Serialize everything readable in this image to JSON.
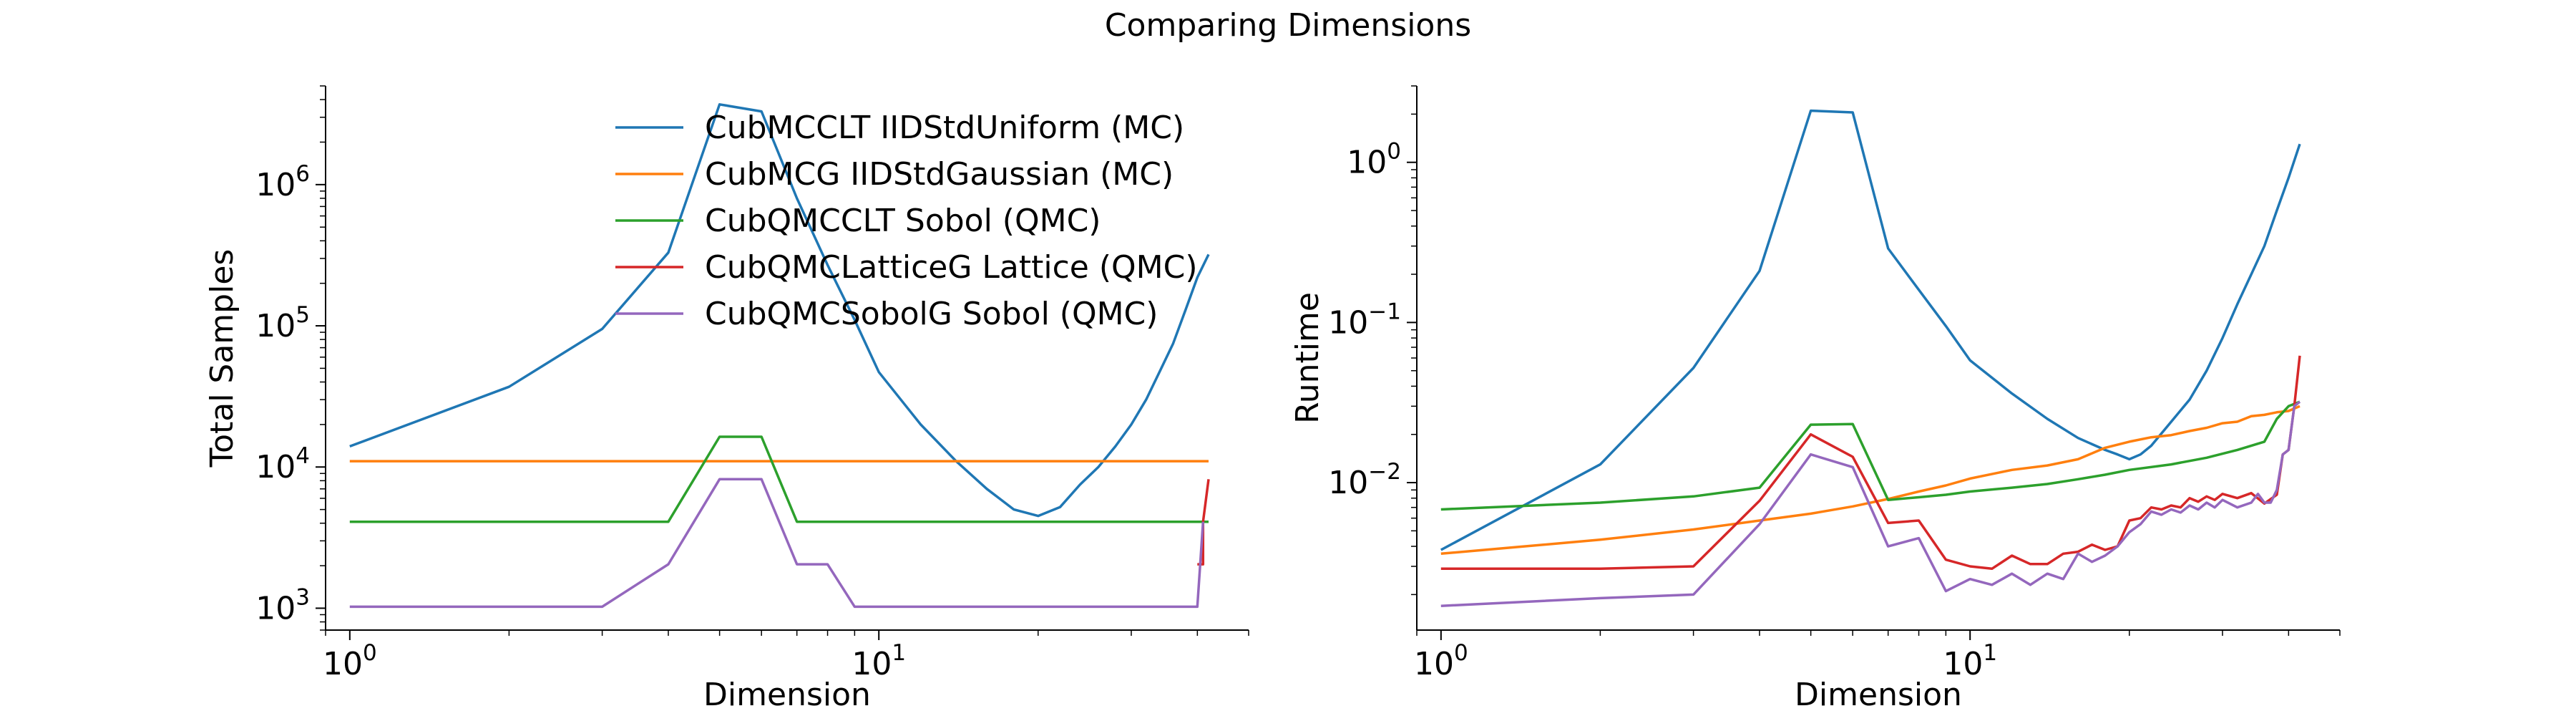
{
  "figure": {
    "title": "Comparing Dimensions"
  },
  "chart_data": [
    {
      "type": "line",
      "xscale": "log",
      "yscale": "log",
      "xlabel": "Dimension",
      "ylabel": "Total Samples",
      "xlim": [
        0.9,
        50
      ],
      "ylim": [
        700,
        5000000
      ],
      "xticks": [
        {
          "value": 1,
          "base": "10",
          "exp": "0"
        },
        {
          "value": 10,
          "base": "10",
          "exp": "1"
        }
      ],
      "yticks": [
        {
          "value": 1000,
          "base": "10",
          "exp": "3"
        },
        {
          "value": 10000,
          "base": "10",
          "exp": "4"
        },
        {
          "value": 100000,
          "base": "10",
          "exp": "5"
        },
        {
          "value": 1000000,
          "base": "10",
          "exp": "6"
        }
      ],
      "grid": false,
      "legend": {
        "placement": "top-right"
      },
      "series": [
        {
          "name": "CubMCCLT IIDStdUniform (MC)",
          "color": "#1f77b4",
          "x": [
            1,
            2,
            3,
            4,
            5,
            6,
            7,
            8,
            9,
            10,
            12,
            14,
            16,
            18,
            20,
            22,
            24,
            26,
            28,
            30,
            32,
            34,
            36,
            38,
            40,
            42
          ],
          "y": [
            14000,
            37000,
            95000,
            330000,
            3700000,
            3300000,
            800000,
            270000,
            110000,
            47000,
            20000,
            11000,
            7000,
            5000,
            4500,
            5200,
            7500,
            10000,
            14000,
            20000,
            30000,
            48000,
            75000,
            130000,
            220000,
            320000
          ]
        },
        {
          "name": "CubMCG IIDStdGaussian (MC)",
          "color": "#ff7f0e",
          "x": [
            1,
            42
          ],
          "y": [
            11000,
            11000
          ]
        },
        {
          "name": "CubQMCCLT Sobol (QMC)",
          "color": "#2ca02c",
          "x": [
            1,
            2,
            3,
            4,
            5,
            6,
            7,
            8,
            10,
            20,
            42
          ],
          "y": [
            4096,
            4096,
            4096,
            4096,
            16384,
            16384,
            4096,
            4096,
            4096,
            4096,
            4096
          ]
        },
        {
          "name": "CubQMCLatticeG Lattice (QMC)",
          "color": "#d62728",
          "x": [
            40,
            41,
            41,
            42
          ],
          "y": [
            2048,
            2048,
            4096,
            8192
          ]
        },
        {
          "name": "CubQMCSobolG Sobol (QMC)",
          "color": "#9467bd",
          "x": [
            1,
            2,
            3,
            4,
            5,
            6,
            7,
            8,
            9,
            10,
            20,
            40,
            41
          ],
          "y": [
            1024,
            1024,
            1024,
            2048,
            8192,
            8192,
            2048,
            2048,
            1024,
            1024,
            1024,
            1024,
            4096
          ]
        }
      ]
    },
    {
      "type": "line",
      "xscale": "log",
      "yscale": "log",
      "xlabel": "Dimension",
      "ylabel": "Runtime",
      "xlim": [
        0.9,
        50
      ],
      "ylim": [
        0.0012,
        3
      ],
      "xticks": [
        {
          "value": 1,
          "base": "10",
          "exp": "0"
        },
        {
          "value": 10,
          "base": "10",
          "exp": "1"
        }
      ],
      "yticks": [
        {
          "value": 0.01,
          "base": "10",
          "exp": "−2"
        },
        {
          "value": 0.1,
          "base": "10",
          "exp": "−1"
        },
        {
          "value": 1,
          "base": "10",
          "exp": "0"
        }
      ],
      "grid": false,
      "legend": null,
      "series": [
        {
          "name": "CubMCCLT IIDStdUniform (MC)",
          "color": "#1f77b4",
          "x": [
            1,
            2,
            3,
            4,
            5,
            6,
            7,
            8,
            9,
            10,
            12,
            14,
            16,
            18,
            19,
            20,
            21,
            22,
            24,
            26,
            28,
            30,
            32,
            34,
            36,
            38,
            40,
            42
          ],
          "y": [
            0.0038,
            0.013,
            0.052,
            0.21,
            2.1,
            2.05,
            0.29,
            0.16,
            0.095,
            0.058,
            0.036,
            0.025,
            0.019,
            0.016,
            0.015,
            0.014,
            0.015,
            0.017,
            0.024,
            0.033,
            0.05,
            0.08,
            0.13,
            0.2,
            0.3,
            0.5,
            0.8,
            1.3
          ]
        },
        {
          "name": "CubMCG IIDStdGaussian (MC)",
          "color": "#ff7f0e",
          "x": [
            1,
            2,
            3,
            4,
            5,
            6,
            7,
            8,
            9,
            10,
            12,
            14,
            16,
            18,
            20,
            22,
            24,
            26,
            28,
            30,
            32,
            34,
            36,
            38,
            40,
            42
          ],
          "y": [
            0.0036,
            0.0044,
            0.0051,
            0.0058,
            0.0064,
            0.0071,
            0.0079,
            0.0088,
            0.0096,
            0.0106,
            0.012,
            0.0128,
            0.014,
            0.0165,
            0.018,
            0.0192,
            0.0198,
            0.021,
            0.022,
            0.0235,
            0.024,
            0.026,
            0.0265,
            0.0275,
            0.028,
            0.03
          ]
        },
        {
          "name": "CubQMCCLT Sobol (QMC)",
          "color": "#2ca02c",
          "x": [
            1,
            2,
            3,
            4,
            5,
            6,
            7,
            8,
            9,
            10,
            12,
            14,
            16,
            18,
            20,
            24,
            28,
            32,
            36,
            38,
            40,
            42
          ],
          "y": [
            0.0068,
            0.0075,
            0.0082,
            0.0093,
            0.023,
            0.0232,
            0.0078,
            0.0081,
            0.0084,
            0.0088,
            0.0093,
            0.0098,
            0.0105,
            0.0112,
            0.012,
            0.013,
            0.0143,
            0.016,
            0.018,
            0.025,
            0.03,
            0.032
          ]
        },
        {
          "name": "CubQMCLatticeG Lattice (QMC)",
          "color": "#d62728",
          "x": [
            1,
            2,
            3,
            4,
            5,
            6,
            7,
            8,
            9,
            10,
            11,
            12,
            13,
            14,
            15,
            16,
            17,
            18,
            19,
            20,
            21,
            22,
            23,
            24,
            25,
            26,
            27,
            28,
            29,
            30,
            32,
            34,
            36,
            38,
            39,
            40,
            41,
            42
          ],
          "y": [
            0.0029,
            0.0029,
            0.003,
            0.0077,
            0.02,
            0.0145,
            0.0056,
            0.0058,
            0.0033,
            0.003,
            0.0029,
            0.0035,
            0.0031,
            0.0031,
            0.0036,
            0.0037,
            0.0041,
            0.0038,
            0.004,
            0.0058,
            0.006,
            0.007,
            0.0068,
            0.0072,
            0.007,
            0.008,
            0.0076,
            0.0082,
            0.0078,
            0.0085,
            0.008,
            0.0086,
            0.0074,
            0.0084,
            0.015,
            0.016,
            0.03,
            0.062
          ]
        },
        {
          "name": "CubQMCSobolG Sobol (QMC)",
          "color": "#9467bd",
          "x": [
            1,
            2,
            3,
            4,
            5,
            6,
            7,
            8,
            9,
            10,
            11,
            12,
            13,
            14,
            15,
            16,
            17,
            18,
            19,
            20,
            21,
            22,
            23,
            24,
            25,
            26,
            27,
            28,
            29,
            30,
            32,
            34,
            35,
            36,
            37,
            38,
            39,
            40,
            41,
            42
          ],
          "y": [
            0.0017,
            0.0019,
            0.002,
            0.0055,
            0.015,
            0.0125,
            0.004,
            0.0045,
            0.0021,
            0.0025,
            0.0023,
            0.0027,
            0.0023,
            0.0027,
            0.0025,
            0.0036,
            0.0032,
            0.0035,
            0.004,
            0.0049,
            0.0055,
            0.0066,
            0.0063,
            0.0068,
            0.0065,
            0.0072,
            0.0068,
            0.0075,
            0.007,
            0.0078,
            0.007,
            0.0075,
            0.0085,
            0.0075,
            0.0075,
            0.009,
            0.015,
            0.016,
            0.03,
            0.032
          ]
        }
      ]
    }
  ]
}
